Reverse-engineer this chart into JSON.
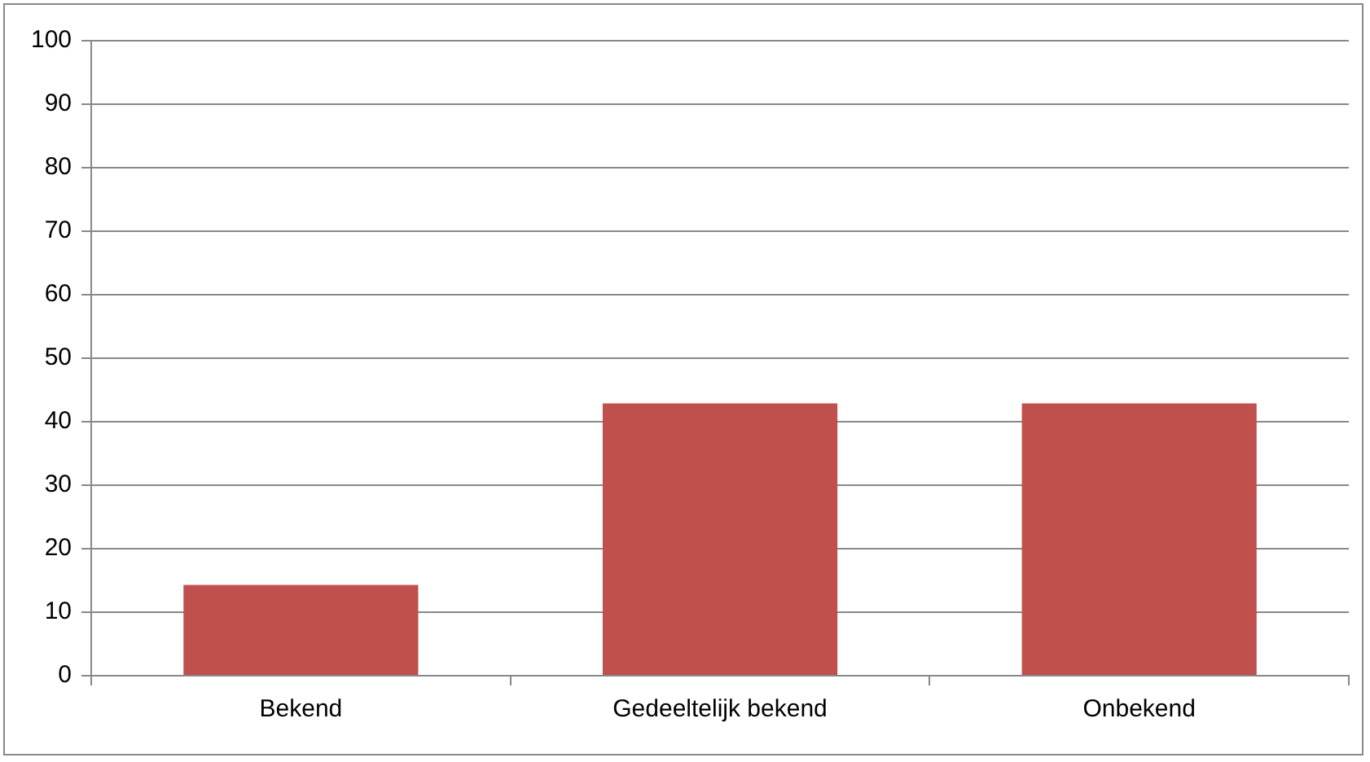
{
  "chart_data": {
    "type": "bar",
    "categories": [
      "Bekend",
      "Gedeeltelijk bekend",
      "Onbekend"
    ],
    "values": [
      14.3,
      42.9,
      42.9
    ],
    "color": "#c0504d",
    "ylim": [
      0,
      100
    ],
    "yticks": [
      0,
      10,
      20,
      30,
      40,
      50,
      60,
      70,
      80,
      90,
      100
    ],
    "grid": "y",
    "legend": false
  }
}
